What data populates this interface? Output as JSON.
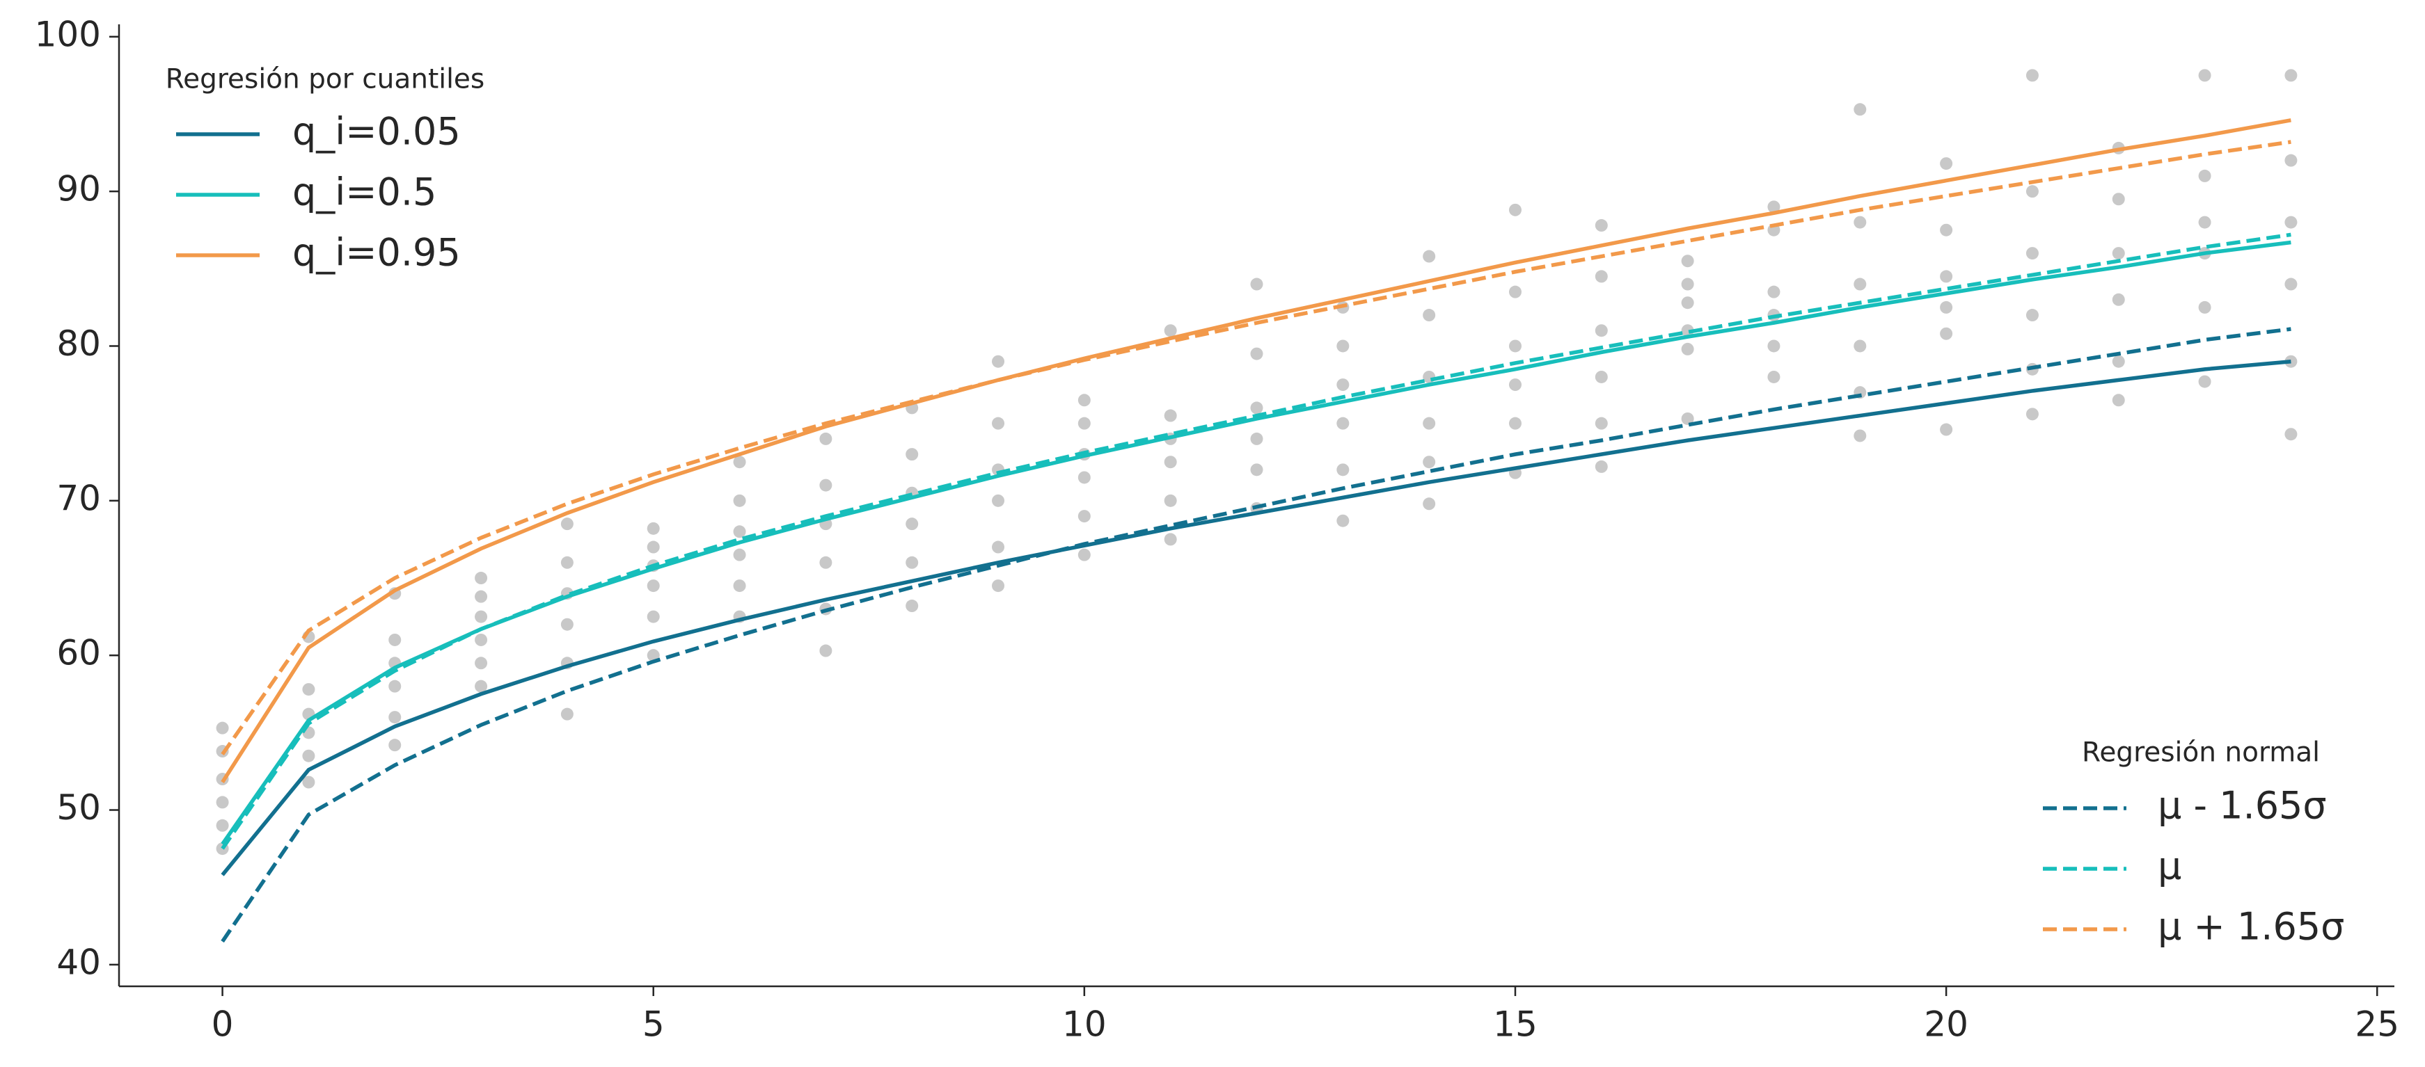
{
  "chart_data": {
    "type": "line",
    "x": [
      0,
      1,
      2,
      3,
      4,
      5,
      6,
      7,
      8,
      9,
      10,
      11,
      12,
      13,
      14,
      15,
      16,
      17,
      18,
      19,
      20,
      21,
      22,
      23,
      24
    ],
    "xlim": [
      -1.2,
      25.2
    ],
    "xticks": [
      0,
      5,
      10,
      15,
      20,
      25
    ],
    "ylim": [
      38.6,
      100.8
    ],
    "yticks": [
      40,
      50,
      60,
      70,
      80,
      90,
      100
    ],
    "scatter": {
      "color": "#c8c8c8",
      "x": [
        0,
        0,
        0,
        0,
        0,
        0,
        1,
        1,
        1,
        1,
        1,
        1,
        2,
        2,
        2,
        2,
        2,
        2,
        3,
        3,
        3,
        3,
        3,
        3,
        4,
        4,
        4,
        4,
        4,
        4,
        5,
        5,
        5,
        5,
        5,
        5,
        6,
        6,
        6,
        6,
        6,
        6,
        7,
        7,
        7,
        7,
        7,
        7,
        8,
        8,
        8,
        8,
        8,
        8,
        9,
        9,
        9,
        9,
        9,
        9,
        10,
        10,
        10,
        10,
        10,
        10,
        11,
        11,
        11,
        11,
        11,
        11,
        12,
        12,
        12,
        12,
        12,
        12,
        13,
        13,
        13,
        13,
        13,
        13,
        14,
        14,
        14,
        14,
        14,
        14,
        15,
        15,
        15,
        15,
        15,
        15,
        16,
        16,
        16,
        16,
        16,
        16,
        17,
        17,
        17,
        17,
        17,
        17,
        18,
        18,
        18,
        18,
        18,
        18,
        19,
        19,
        19,
        19,
        19,
        19,
        20,
        20,
        20,
        20,
        20,
        20,
        21,
        21,
        21,
        21,
        21,
        21,
        22,
        22,
        22,
        22,
        22,
        22,
        23,
        23,
        23,
        23,
        23,
        23,
        24,
        24,
        24,
        24,
        24,
        24
      ],
      "y": [
        47.5,
        49,
        50.5,
        52,
        53.8,
        55.3,
        51.8,
        53.5,
        55,
        56.2,
        57.8,
        61.2,
        54.2,
        56,
        58,
        59.5,
        61,
        64,
        58,
        59.5,
        61,
        62.5,
        63.8,
        65,
        56.2,
        59.5,
        62,
        64,
        66,
        68.5,
        60,
        62.5,
        64.5,
        65.8,
        67,
        68.2,
        62.5,
        64.5,
        66.5,
        68,
        70,
        72.5,
        60.3,
        63,
        66,
        68.5,
        71,
        74,
        63.2,
        66,
        68.5,
        70.5,
        73,
        76,
        64.5,
        67,
        70,
        72,
        75,
        79,
        66.5,
        69,
        71.5,
        73,
        75,
        76.5,
        67.5,
        70,
        72.5,
        74,
        75.5,
        81,
        69.5,
        72,
        74,
        76,
        79.5,
        84,
        68.7,
        72,
        75,
        77.5,
        80,
        82.5,
        69.8,
        72.5,
        75,
        78,
        82,
        85.8,
        71.8,
        75,
        77.5,
        80,
        83.5,
        88.8,
        72.2,
        75,
        78,
        81,
        84.5,
        87.8,
        75.3,
        79.8,
        81,
        82.8,
        84,
        85.5,
        78,
        80,
        82,
        83.5,
        87.5,
        89,
        74.2,
        77,
        80,
        84,
        88,
        95.3,
        74.6,
        80.8,
        82.5,
        84.5,
        87.5,
        91.8,
        75.6,
        78.5,
        82,
        86,
        90,
        97.5,
        76.5,
        79,
        83,
        86,
        89.5,
        92.8,
        77.7,
        82.5,
        86,
        88,
        91,
        97.5,
        74.3,
        79,
        84,
        88,
        92,
        97.5
      ]
    },
    "legends": [
      {
        "title": "Regresión por cuantiles",
        "loc": "upper left",
        "series": [
          {
            "name": "q_i=0.05",
            "color": "#12708f",
            "linestyle": "solid",
            "values": [
              45.8,
              52.6,
              55.4,
              57.5,
              59.3,
              60.9,
              62.3,
              63.6,
              64.8,
              66.0,
              67.1,
              68.2,
              69.2,
              70.2,
              71.2,
              72.1,
              73.0,
              73.9,
              74.7,
              75.5,
              76.3,
              77.1,
              77.8,
              78.5,
              79.0
            ]
          },
          {
            "name": "q_i=0.5",
            "color": "#17bebb",
            "linestyle": "solid",
            "values": [
              47.8,
              55.8,
              59.2,
              61.7,
              63.8,
              65.6,
              67.3,
              68.8,
              70.2,
              71.6,
              72.9,
              74.1,
              75.3,
              76.4,
              77.5,
              78.5,
              79.6,
              80.6,
              81.5,
              82.5,
              83.4,
              84.3,
              85.1,
              86.0,
              86.7
            ]
          },
          {
            "name": "q_i=0.95",
            "color": "#f2994a",
            "linestyle": "solid",
            "values": [
              51.8,
              60.5,
              64.2,
              66.9,
              69.2,
              71.2,
              73.0,
              74.8,
              76.3,
              77.8,
              79.2,
              80.5,
              81.8,
              83.0,
              84.2,
              85.4,
              86.5,
              87.6,
              88.6,
              89.7,
              90.7,
              91.7,
              92.7,
              93.6,
              94.6
            ]
          }
        ]
      },
      {
        "title": "Regresión normal",
        "loc": "lower right",
        "series": [
          {
            "name": "μ - 1.65σ",
            "color": "#12708f",
            "linestyle": "dashed",
            "values": [
              41.5,
              49.7,
              52.9,
              55.5,
              57.7,
              59.6,
              61.3,
              62.9,
              64.4,
              65.8,
              67.2,
              68.4,
              69.6,
              70.8,
              71.9,
              73.0,
              73.9,
              74.9,
              75.9,
              76.8,
              77.7,
              78.6,
              79.5,
              80.4,
              81.1
            ]
          },
          {
            "name": "μ",
            "color": "#17bebb",
            "linestyle": "dashed",
            "values": [
              47.5,
              55.6,
              59.0,
              61.7,
              63.9,
              65.8,
              67.5,
              69.0,
              70.4,
              71.8,
              73.1,
              74.3,
              75.5,
              76.7,
              77.8,
              78.9,
              79.9,
              80.9,
              81.9,
              82.8,
              83.7,
              84.6,
              85.5,
              86.4,
              87.2
            ]
          },
          {
            "name": "μ + 1.65σ",
            "color": "#f2994a",
            "linestyle": "dashed",
            "values": [
              53.6,
              61.6,
              65.0,
              67.6,
              69.8,
              71.7,
              73.4,
              75.0,
              76.4,
              77.8,
              79.1,
              80.3,
              81.5,
              82.6,
              83.7,
              84.8,
              85.8,
              86.8,
              87.8,
              88.8,
              89.7,
              90.6,
              91.5,
              92.4,
              93.2
            ]
          }
        ]
      }
    ]
  }
}
